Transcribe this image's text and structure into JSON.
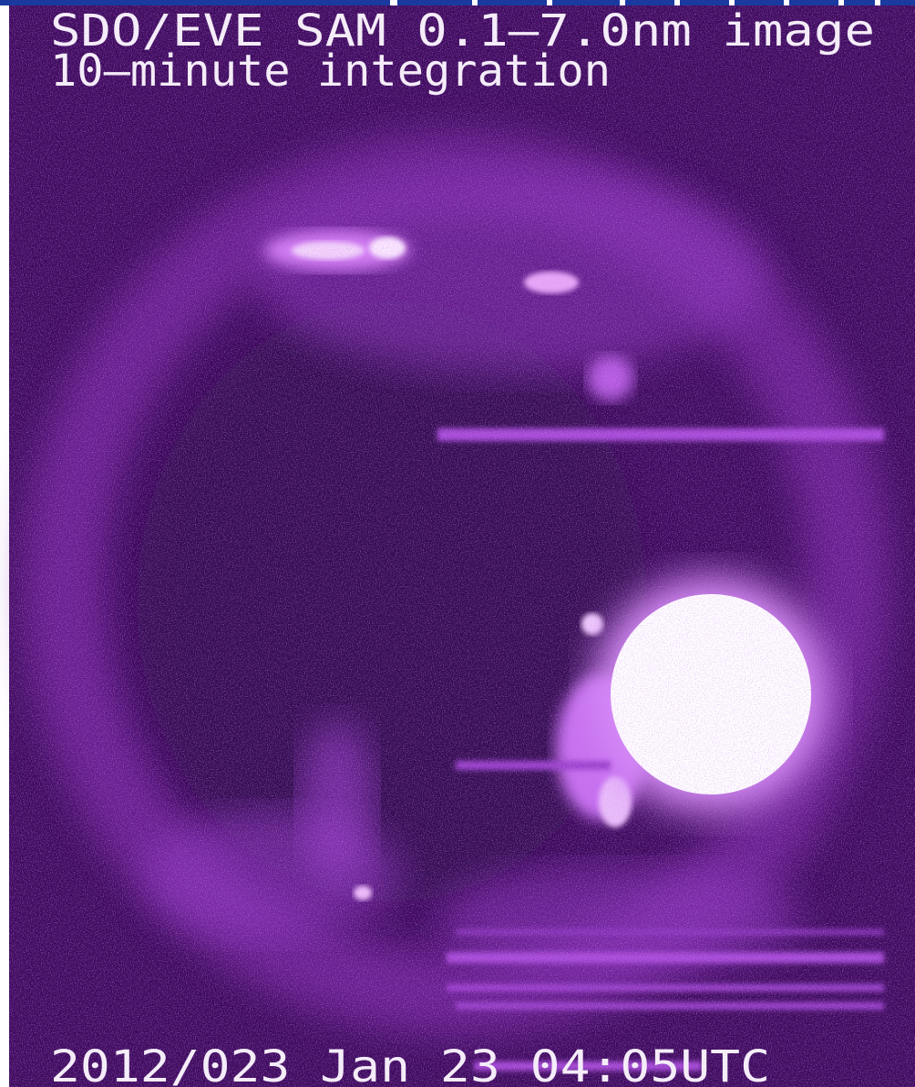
{
  "header": {
    "title": "SDO/EVE SAM 0.1—7.0nm image",
    "subtitle": "10—minute integration"
  },
  "footer": {
    "timestamp": "2012/023 Jan 23 04:05UTC"
  }
}
